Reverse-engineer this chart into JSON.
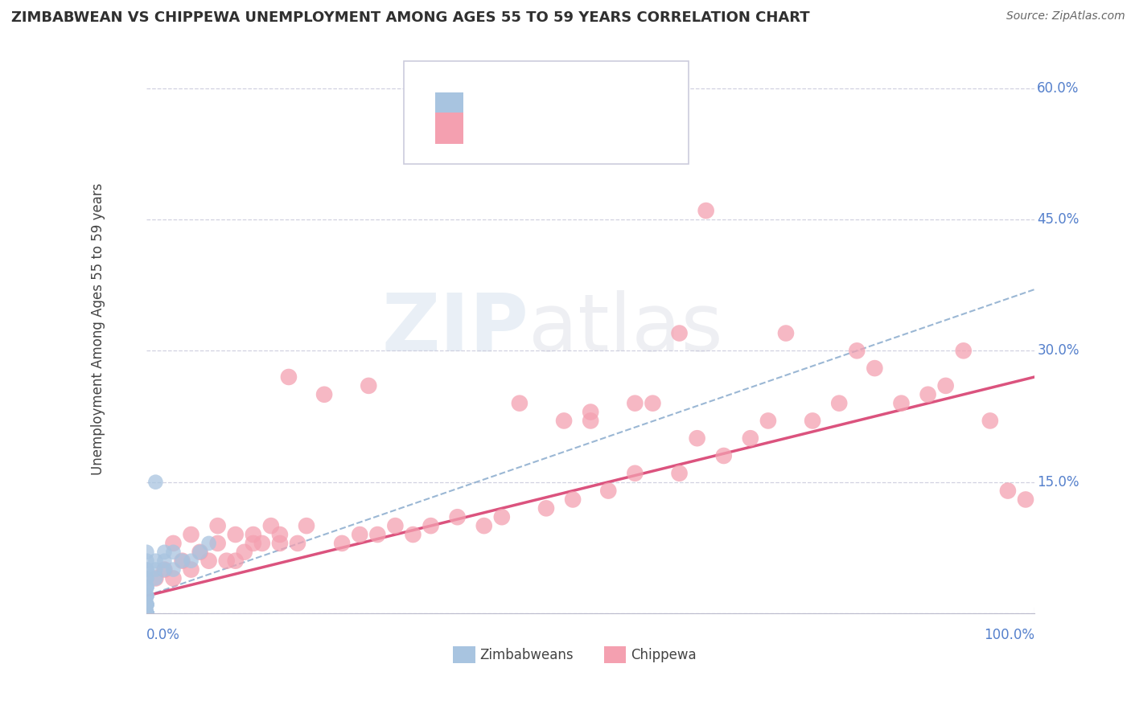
{
  "title": "ZIMBABWEAN VS CHIPPEWA UNEMPLOYMENT AMONG AGES 55 TO 59 YEARS CORRELATION CHART",
  "source_text": "Source: ZipAtlas.com",
  "ylabel": "Unemployment Among Ages 55 to 59 years",
  "xlim": [
    0.0,
    1.0
  ],
  "ylim": [
    0.0,
    0.65
  ],
  "yticks": [
    0.0,
    0.15,
    0.3,
    0.45,
    0.6
  ],
  "ytick_labels": [
    "",
    "15.0%",
    "30.0%",
    "45.0%",
    "60.0%"
  ],
  "legend_bottom_zim": "Zimbabweans",
  "legend_bottom_chip": "Chippewa",
  "zim_color": "#a8c4e0",
  "chip_color": "#f4a0b0",
  "zim_line_color": "#90b0d0",
  "chip_line_color": "#d84070",
  "text_color": "#5580cc",
  "axis_label_color": "#5580cc",
  "background_color": "#ffffff",
  "title_color": "#303030",
  "grid_color": "#ccccdd",
  "title_fontsize": 13,
  "zim_trend_x": [
    0.0,
    1.0
  ],
  "zim_trend_y": [
    0.02,
    0.37
  ],
  "chip_trend_x": [
    0.0,
    1.0
  ],
  "chip_trend_y": [
    0.02,
    0.27
  ],
  "zimbabwean_x": [
    0.0,
    0.0,
    0.0,
    0.0,
    0.0,
    0.0,
    0.0,
    0.0,
    0.0,
    0.0,
    0.0,
    0.0,
    0.0,
    0.0,
    0.0,
    0.0,
    0.0,
    0.0,
    0.0,
    0.0,
    0.0,
    0.0,
    0.0,
    0.0,
    0.0,
    0.0,
    0.0,
    0.01,
    0.01,
    0.01,
    0.01,
    0.02,
    0.02,
    0.02,
    0.03,
    0.03,
    0.04,
    0.05,
    0.06,
    0.07
  ],
  "zimbabwean_y": [
    0.0,
    0.0,
    0.0,
    0.0,
    0.0,
    0.0,
    0.0,
    0.0,
    0.0,
    0.0,
    0.0,
    0.01,
    0.01,
    0.01,
    0.01,
    0.02,
    0.02,
    0.02,
    0.03,
    0.03,
    0.03,
    0.04,
    0.04,
    0.05,
    0.05,
    0.06,
    0.07,
    0.04,
    0.05,
    0.06,
    0.15,
    0.05,
    0.06,
    0.07,
    0.05,
    0.07,
    0.06,
    0.06,
    0.07,
    0.08
  ],
  "chippewa_x": [
    0.01,
    0.02,
    0.03,
    0.03,
    0.04,
    0.05,
    0.05,
    0.06,
    0.07,
    0.08,
    0.08,
    0.09,
    0.1,
    0.1,
    0.11,
    0.12,
    0.12,
    0.13,
    0.14,
    0.15,
    0.15,
    0.16,
    0.17,
    0.18,
    0.2,
    0.22,
    0.24,
    0.25,
    0.26,
    0.28,
    0.3,
    0.32,
    0.35,
    0.38,
    0.4,
    0.42,
    0.45,
    0.47,
    0.48,
    0.5,
    0.52,
    0.55,
    0.57,
    0.6,
    0.62,
    0.63,
    0.65,
    0.68,
    0.7,
    0.72,
    0.75,
    0.78,
    0.8,
    0.82,
    0.85,
    0.88,
    0.9,
    0.92,
    0.95,
    0.97,
    0.99,
    0.5,
    0.55,
    0.6
  ],
  "chippewa_y": [
    0.04,
    0.05,
    0.04,
    0.08,
    0.06,
    0.05,
    0.09,
    0.07,
    0.06,
    0.08,
    0.1,
    0.06,
    0.06,
    0.09,
    0.07,
    0.08,
    0.09,
    0.08,
    0.1,
    0.08,
    0.09,
    0.27,
    0.08,
    0.1,
    0.25,
    0.08,
    0.09,
    0.26,
    0.09,
    0.1,
    0.09,
    0.1,
    0.11,
    0.1,
    0.11,
    0.24,
    0.12,
    0.22,
    0.13,
    0.22,
    0.14,
    0.16,
    0.24,
    0.16,
    0.2,
    0.46,
    0.18,
    0.2,
    0.22,
    0.32,
    0.22,
    0.24,
    0.3,
    0.28,
    0.24,
    0.25,
    0.26,
    0.3,
    0.22,
    0.14,
    0.13,
    0.23,
    0.24,
    0.32
  ]
}
